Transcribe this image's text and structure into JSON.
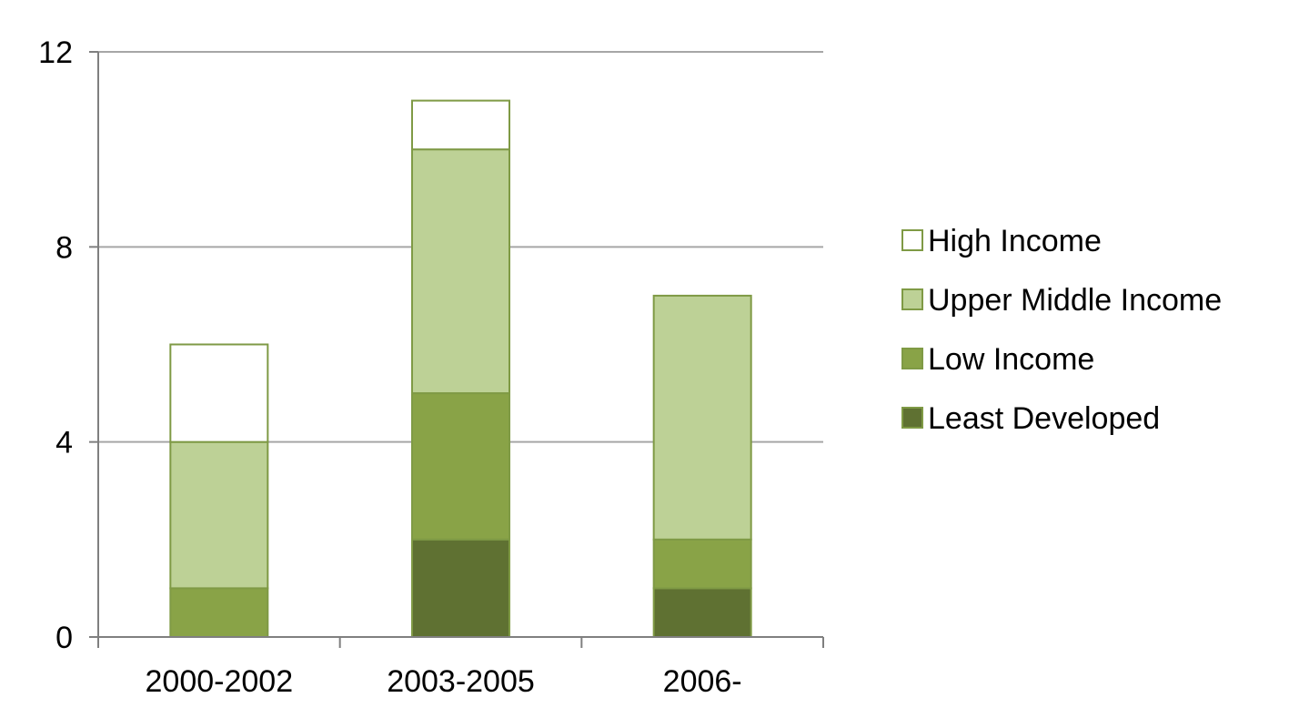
{
  "chart_data": {
    "type": "bar",
    "stacked": true,
    "title": "",
    "xlabel": "",
    "ylabel": "",
    "categories": [
      "2000-2002",
      "2003-2005",
      "2006-"
    ],
    "ylim": [
      0,
      12
    ],
    "yticks": [
      0,
      4,
      8,
      12
    ],
    "grid": true,
    "legend_position": "right",
    "series": [
      {
        "name": "Least Developed",
        "values": [
          0,
          2,
          1
        ],
        "color": "#5f7132"
      },
      {
        "name": "Low Income",
        "values": [
          1,
          3,
          1
        ],
        "color": "#89a347"
      },
      {
        "name": "Upper Middle Income",
        "values": [
          3,
          5,
          5
        ],
        "color": "#bdd196"
      },
      {
        "name": "High Income",
        "values": [
          2,
          1,
          0
        ],
        "color": "#ffffff"
      }
    ],
    "legend_order": [
      "High Income",
      "Upper Middle Income",
      "Low Income",
      "Least Developed"
    ],
    "border_color": "#7f9a45",
    "grid_color": "#a6a6a6",
    "axis_color": "#7f7f7f"
  }
}
